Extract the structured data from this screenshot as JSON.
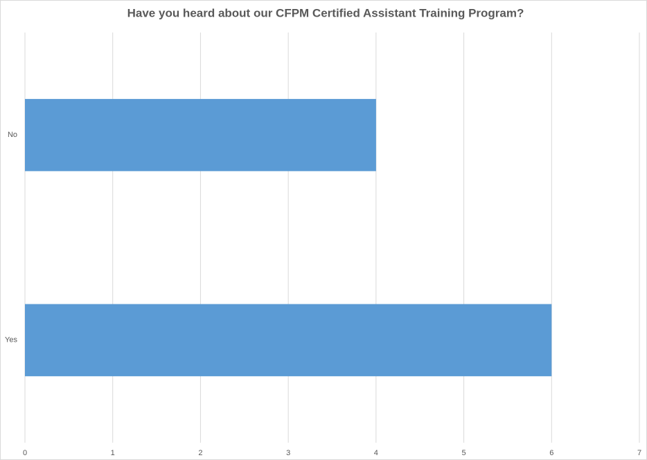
{
  "chart_data": {
    "type": "bar",
    "orientation": "horizontal",
    "title": "Have you heard about our CFPM Certified Assistant Training Program?",
    "categories": [
      "No",
      "Yes"
    ],
    "values": [
      4,
      6
    ],
    "color": "#5b9bd5",
    "xlim": [
      0,
      7
    ],
    "xticks": [
      0,
      1,
      2,
      3,
      4,
      5,
      6,
      7
    ],
    "grid": true
  }
}
